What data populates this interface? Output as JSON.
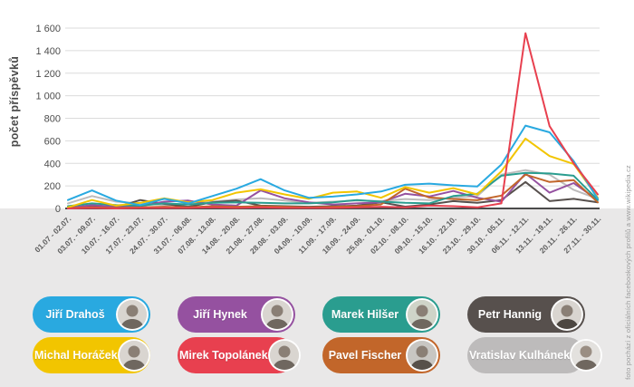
{
  "chart": {
    "y_axis_title": "počet příspěvků",
    "y_ticks": [
      "0",
      "200",
      "400",
      "600",
      "800",
      "1 000",
      "1 200",
      "1 400",
      "1 600"
    ],
    "caption_right": "foto pochází z oficiálních facebookových profilů a www.wikipedia.cz"
  },
  "chart_data": {
    "type": "line",
    "title": "",
    "xlabel": "",
    "ylabel": "počet příspěvků",
    "ylim": [
      0,
      1600
    ],
    "grid": true,
    "legend_position": "bottom",
    "categories": [
      "01.07 - 02.07.",
      "03.07. - 09.07.",
      "10.07. - 16.07.",
      "17.07. - 23.07.",
      "24.07. - 30.07.",
      "31.07. - 06.08.",
      "07.08. - 13.08.",
      "14.08. - 20.08.",
      "21.08. - 27.08.",
      "28.08. - 03.09.",
      "04.09. - 10.09.",
      "11.09. - 17.09.",
      "18.09. - 24.09.",
      "25.09. - 01.10.",
      "02.10. - 08.10.",
      "09.10. - 15.10.",
      "16.10. - 22.10.",
      "23.10. - 29.10.",
      "30.10. - 05.11.",
      "06.11. - 12.11.",
      "13.11. - 19.11.",
      "20.11. - 26.11.",
      "27.11. - 30.11."
    ],
    "series": [
      {
        "name": "Vratislav Kulhánek",
        "color": "#BDBBBB",
        "values": [
          45,
          110,
          60,
          45,
          30,
          40,
          60,
          80,
          90,
          70,
          50,
          60,
          70,
          65,
          84,
          75,
          95,
          110,
          300,
          340,
          300,
          165,
          85
        ]
      },
      {
        "name": "Petr Hannig",
        "color": "#57504D",
        "values": [
          5,
          15,
          10,
          75,
          40,
          15,
          55,
          70,
          25,
          20,
          15,
          20,
          25,
          55,
          16,
          35,
          65,
          50,
          75,
          235,
          65,
          85,
          55
        ]
      },
      {
        "name": "Jiří Hynek",
        "color": "#9551A0",
        "values": [
          5,
          30,
          15,
          20,
          60,
          70,
          35,
          25,
          160,
          90,
          55,
          35,
          45,
          55,
          130,
          106,
          155,
          95,
          60,
          310,
          140,
          225,
          75
        ]
      },
      {
        "name": "Pavel Fischer",
        "color": "#C2662A",
        "values": [
          5,
          10,
          5,
          10,
          15,
          10,
          20,
          15,
          20,
          15,
          10,
          15,
          20,
          35,
          175,
          97,
          84,
          73,
          114,
          300,
          235,
          252,
          55
        ]
      },
      {
        "name": "Marek Hilšer",
        "color": "#2A9D8F",
        "values": [
          20,
          45,
          30,
          25,
          45,
          35,
          50,
          55,
          50,
          45,
          45,
          55,
          75,
          60,
          50,
          45,
          110,
          130,
          290,
          315,
          310,
          290,
          75
        ]
      },
      {
        "name": "Michal Horáček",
        "color": "#F2C500",
        "values": [
          10,
          75,
          25,
          50,
          90,
          55,
          75,
          140,
          170,
          125,
          85,
          140,
          150,
          95,
          190,
          140,
          180,
          125,
          330,
          620,
          465,
          395,
          95
        ]
      },
      {
        "name": "Jiří Drahoš",
        "color": "#29A9E0",
        "values": [
          75,
          160,
          70,
          30,
          85,
          45,
          110,
          175,
          260,
          160,
          95,
          105,
          125,
          150,
          210,
          220,
          205,
          195,
          390,
          735,
          675,
          420,
          85
        ]
      },
      {
        "name": "Mirek Topolánek",
        "color": "#E8404F",
        "values": [
          0,
          5,
          0,
          5,
          5,
          5,
          10,
          5,
          10,
          5,
          5,
          5,
          10,
          15,
          10,
          25,
          20,
          10,
          45,
          1555,
          730,
          400,
          125
        ]
      }
    ]
  },
  "legend": {
    "items": [
      {
        "name": "Jiří Drahoš",
        "color": "#29A9E0"
      },
      {
        "name": "Jiří Hynek",
        "color": "#9551A0"
      },
      {
        "name": "Marek Hilšer",
        "color": "#2A9D8F"
      },
      {
        "name": "Petr Hannig",
        "color": "#57504D"
      },
      {
        "name": "Michal Horáček",
        "color": "#F2C500"
      },
      {
        "name": "Mirek Topolánek",
        "color": "#E8404F"
      },
      {
        "name": "Pavel Fischer",
        "color": "#C2662A"
      },
      {
        "name": "Vratislav Kulhánek",
        "color": "#BDBBBB"
      }
    ]
  }
}
